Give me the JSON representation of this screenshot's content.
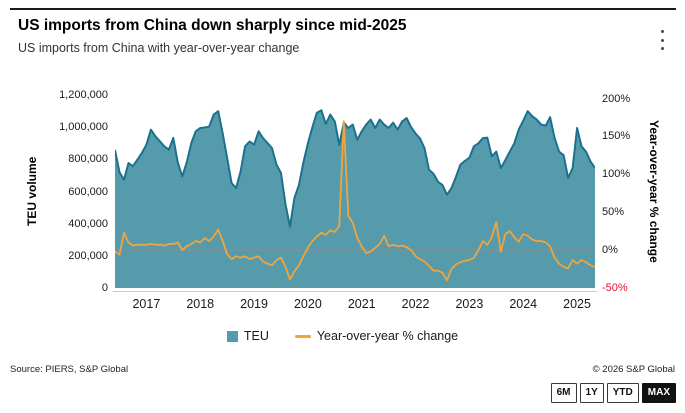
{
  "header": {
    "title": "US imports from China down sharply since mid-2025",
    "subtitle": "US imports from China with year-over-year change"
  },
  "chart_data": {
    "type": "area+line",
    "unit": "TEU per month",
    "x": [
      "2016-12",
      "2017-01",
      "2017-02",
      "2017-03",
      "2017-04",
      "2017-05",
      "2017-06",
      "2017-07",
      "2017-08",
      "2017-09",
      "2017-10",
      "2017-11",
      "2017-12",
      "2018-01",
      "2018-02",
      "2018-03",
      "2018-04",
      "2018-05",
      "2018-06",
      "2018-07",
      "2018-08",
      "2018-09",
      "2018-10",
      "2018-11",
      "2018-12",
      "2019-01",
      "2019-02",
      "2019-03",
      "2019-04",
      "2019-05",
      "2019-06",
      "2019-07",
      "2019-08",
      "2019-09",
      "2019-10",
      "2019-11",
      "2019-12",
      "2020-01",
      "2020-02",
      "2020-03",
      "2020-04",
      "2020-05",
      "2020-06",
      "2020-07",
      "2020-08",
      "2020-09",
      "2020-10",
      "2020-11",
      "2020-12",
      "2021-01",
      "2021-02",
      "2021-03",
      "2021-04",
      "2021-05",
      "2021-06",
      "2021-07",
      "2021-08",
      "2021-09",
      "2021-10",
      "2021-11",
      "2021-12",
      "2022-01",
      "2022-02",
      "2022-03",
      "2022-04",
      "2022-05",
      "2022-06",
      "2022-07",
      "2022-08",
      "2022-09",
      "2022-10",
      "2022-11",
      "2022-12",
      "2023-01",
      "2023-02",
      "2023-03",
      "2023-04",
      "2023-05",
      "2023-06",
      "2023-07",
      "2023-08",
      "2023-09",
      "2023-10",
      "2023-11",
      "2023-12",
      "2024-01",
      "2024-02",
      "2024-03",
      "2024-04",
      "2024-05",
      "2024-06",
      "2024-07",
      "2024-08",
      "2024-09",
      "2024-10",
      "2024-11",
      "2024-12",
      "2025-01",
      "2025-02",
      "2025-03",
      "2025-04",
      "2025-05",
      "2025-06",
      "2025-07",
      "2025-08",
      "2025-09",
      "2025-10",
      "2025-11"
    ],
    "series": [
      {
        "name": "TEU",
        "type": "area",
        "axis": "left",
        "fill_color": "#569BAC",
        "line_color": "#1B718E",
        "values": [
          858000,
          720000,
          673000,
          777000,
          757000,
          798000,
          840000,
          891000,
          984000,
          943000,
          912000,
          881000,
          860000,
          933000,
          780000,
          694000,
          782000,
          901000,
          974000,
          995000,
          998000,
          1005000,
          1078000,
          1099000,
          961000,
          810000,
          653000,
          622000,
          725000,
          881000,
          911000,
          891000,
          974000,
          932000,
          901000,
          870000,
          767000,
          715000,
          520000,
          381000,
          560000,
          640000,
          780000,
          900000,
          1000000,
          1090000,
          1105000,
          1020000,
          1078000,
          1035000,
          890000,
          1028000,
          995000,
          1016000,
          922000,
          974000,
          1016000,
          1047000,
          995000,
          1047000,
          1016000,
          995000,
          1028000,
          985000,
          1035000,
          1057000,
          1000000,
          960000,
          930000,
          870000,
          735000,
          710000,
          660000,
          640000,
          580000,
          620000,
          690000,
          767000,
          790000,
          810000,
          881000,
          900000,
          932000,
          935000,
          819000,
          848000,
          746000,
          795000,
          848000,
          900000,
          984000,
          1040000,
          1099000,
          1068000,
          1047000,
          1016000,
          1010000,
          1062000,
          932000,
          848000,
          826000,
          684000,
          745000,
          995000,
          881000,
          848000,
          787000,
          746000
        ]
      },
      {
        "name": "Year-over-year % change",
        "type": "line",
        "axis": "right",
        "line_color": "#F1A43B",
        "values": [
          -2,
          -6,
          23,
          10,
          6,
          7,
          7,
          7,
          8,
          7,
          7,
          6,
          8,
          8,
          10,
          0,
          5,
          8,
          12,
          10,
          16,
          12,
          18,
          27,
          12,
          -5,
          -12,
          -8,
          -10,
          -8,
          -12,
          -10,
          -8,
          -15,
          -18,
          -20,
          -13,
          -10,
          -22,
          -39,
          -28,
          -20,
          -8,
          3,
          12,
          18,
          23,
          20,
          26,
          24,
          32,
          170,
          45,
          36,
          16,
          5,
          -4,
          -2,
          3,
          8,
          19,
          5,
          7,
          5,
          6,
          4,
          0,
          -8,
          -12,
          -15,
          -21,
          -27,
          -27,
          -30,
          -40,
          -25,
          -19,
          -16,
          -14,
          -13,
          -10,
          0,
          12,
          7,
          17,
          37,
          -2,
          21,
          25,
          17,
          11,
          21,
          19,
          14,
          12,
          12,
          10,
          5,
          -10,
          -18,
          -22,
          -24,
          -13,
          -18,
          -13,
          -16,
          -20,
          -22
        ]
      }
    ],
    "left_axis": {
      "label": "TEU volume",
      "range": [
        0,
        1200000
      ],
      "ticks": [
        {
          "label": "1,200,000",
          "value": 1200000
        },
        {
          "label": "1,000,000",
          "value": 1000000
        },
        {
          "label": "800,000",
          "value": 800000
        },
        {
          "label": "600,000",
          "value": 600000
        },
        {
          "label": "400,000",
          "value": 400000
        },
        {
          "label": "200,000",
          "value": 200000
        },
        {
          "label": "0",
          "value": 0
        }
      ]
    },
    "right_axis": {
      "label": "Year-over-year % change",
      "range": [
        -50,
        200
      ],
      "negative_color": "#E8112D",
      "ticks": [
        {
          "label": "200%",
          "value": 200
        },
        {
          "label": "150%",
          "value": 150
        },
        {
          "label": "100%",
          "value": 100
        },
        {
          "label": "50%",
          "value": 50
        },
        {
          "label": "0%",
          "value": 0
        },
        {
          "label": "-50%",
          "value": -50
        }
      ]
    },
    "x_axis": {
      "tick_years": [
        "2017",
        "2018",
        "2019",
        "2020",
        "2021",
        "2022",
        "2023",
        "2024",
        "2025"
      ]
    },
    "zero_line": {
      "value": 0,
      "color": "#8C8C8C"
    },
    "grid": "off",
    "legend_position": "bottom"
  },
  "legend": [
    {
      "label": "TEU",
      "swatch": "square",
      "color": "#569BAC"
    },
    {
      "label": "Year-over-year % change",
      "swatch": "line",
      "color": "#F1A43B"
    }
  ],
  "footer": {
    "source": "Source: PIERS, S&P Global",
    "copyright": "© 2026 S&P Global"
  },
  "range_buttons": [
    {
      "label": "6M",
      "active": false
    },
    {
      "label": "1Y",
      "active": false
    },
    {
      "label": "YTD",
      "active": false
    },
    {
      "label": "MAX",
      "active": true
    }
  ]
}
